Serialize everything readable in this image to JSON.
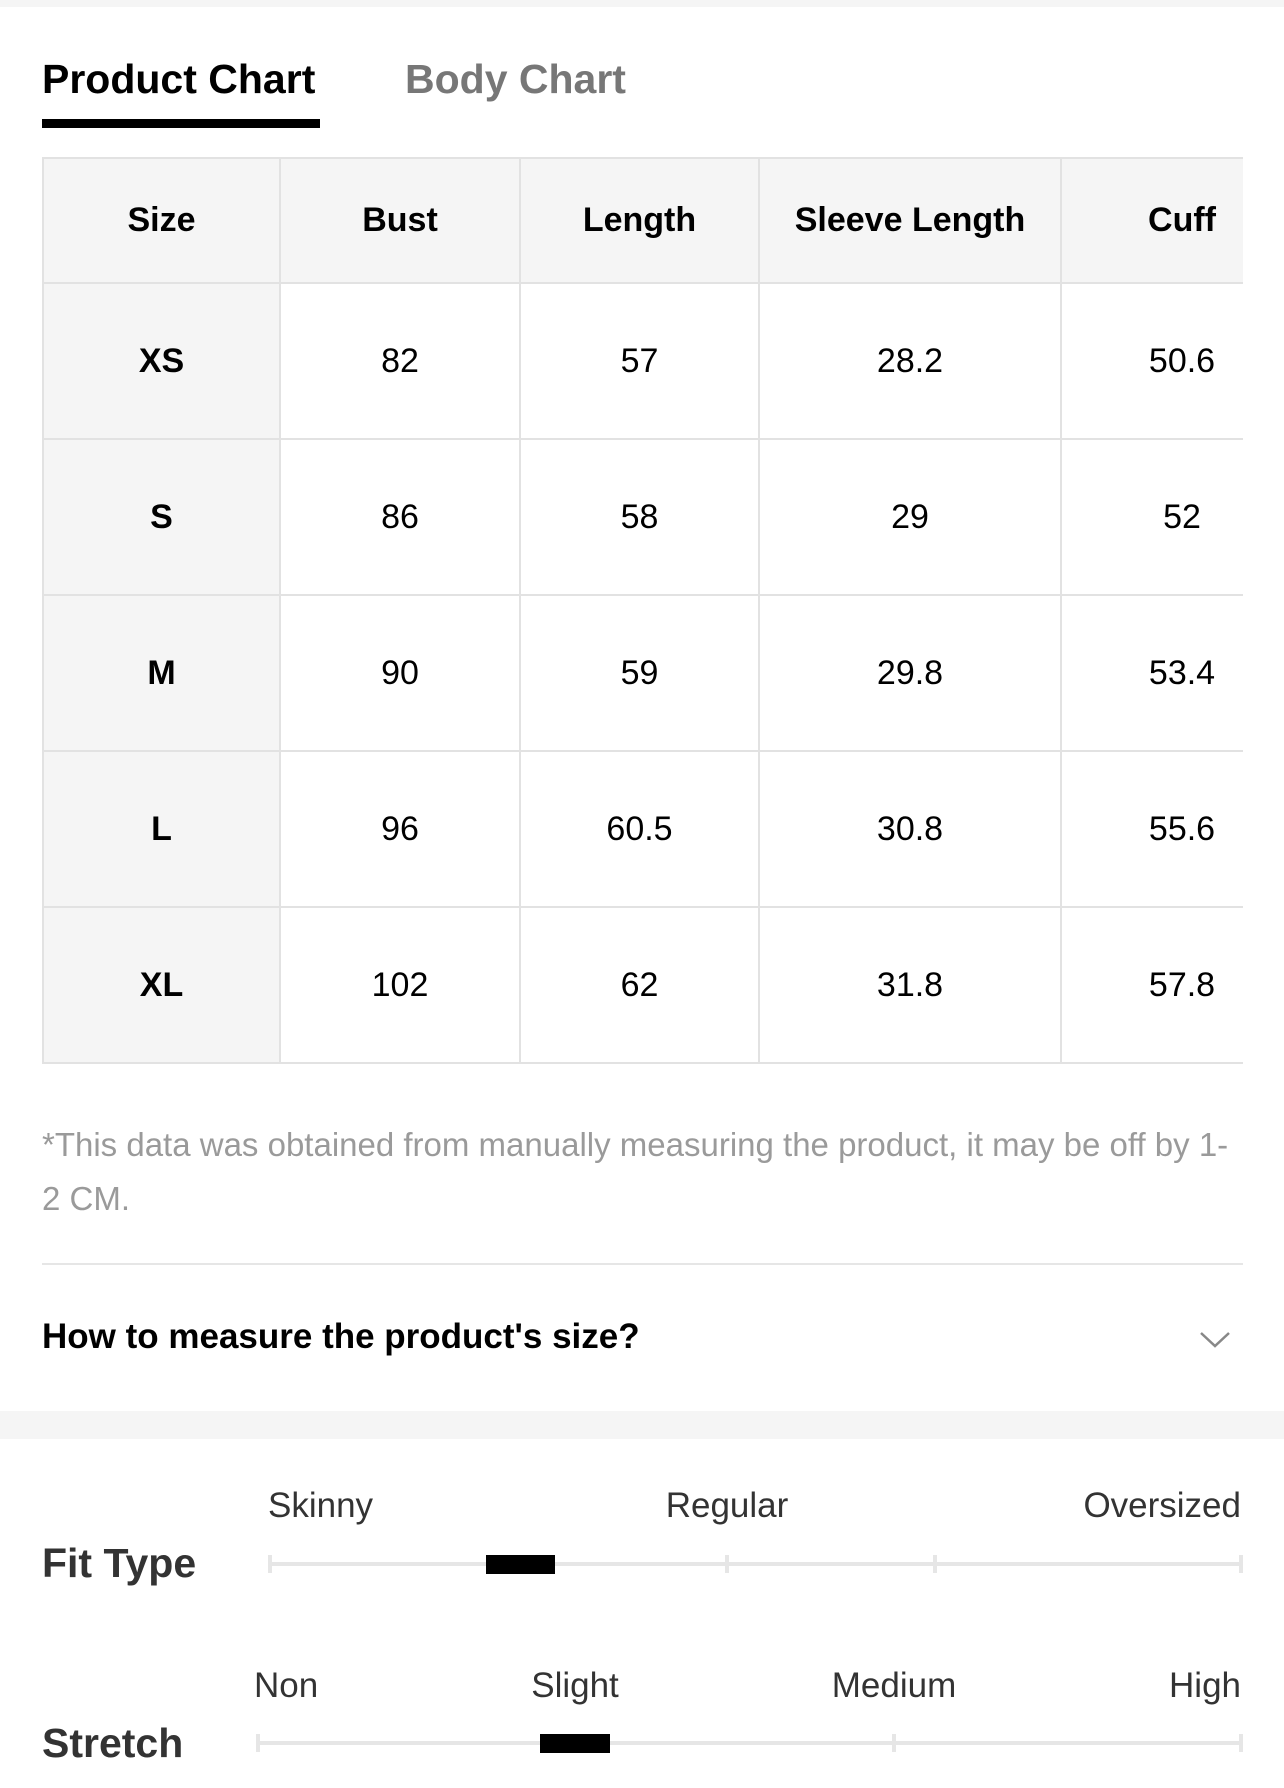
{
  "tabs": [
    "Product Chart",
    "Body Chart"
  ],
  "table": {
    "header": [
      "Size",
      "Bust",
      "Length",
      "Sleeve Length",
      "Cuff"
    ],
    "rows": [
      [
        "XS",
        "82",
        "57",
        "28.2",
        "50.6"
      ],
      [
        "S",
        "86",
        "58",
        "29",
        "52"
      ],
      [
        "M",
        "90",
        "59",
        "29.8",
        "53.4"
      ],
      [
        "L",
        "96",
        "60.5",
        "30.8",
        "55.6"
      ],
      [
        "XL",
        "102",
        "62",
        "31.8",
        "57.8"
      ]
    ]
  },
  "note": "*This data was obtained from manually measuring the product, it may be off by 1-2 CM.",
  "question": "How to measure the product's size?",
  "fit_type": {
    "label": "Fit Type",
    "scale": [
      "Skinny",
      "Regular",
      "Oversized"
    ]
  },
  "stretch": {
    "label": "Stretch",
    "scale": [
      "Non",
      "Slight",
      "Medium",
      "High"
    ]
  }
}
